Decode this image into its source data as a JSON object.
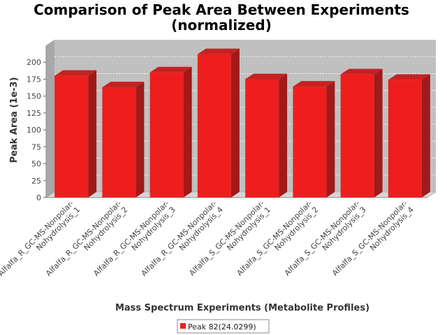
{
  "chart_data": {
    "type": "bar",
    "title": "Comparison of Peak Area Between Experiments",
    "subtitle": "(normalized)",
    "xlabel": "Mass Spectrum Experiments (Metabolite Profiles)",
    "ylabel": "Peak Area (1e-3)",
    "ylim": [
      0,
      225
    ],
    "yticks": [
      "0",
      "25",
      "50",
      "75",
      "100",
      "125",
      "150",
      "175",
      "200"
    ],
    "grid": true,
    "legend_position": "bottom",
    "categories": [
      [
        "Alfalfa_R_GC-MS-Nonpolar-",
        "Nohydrolysis_1"
      ],
      [
        "Alfalfa_R_GC-MS-Nonpolar-",
        "Nohydrolysis_2"
      ],
      [
        "Alfalfa_R_GC-MS-Nonpolar-",
        "Nohydrolysis_3"
      ],
      [
        "Alfalfa_R_GC-MS-Nonpolar-",
        "Nohydrolysis_4"
      ],
      [
        "Alfalfa_S_GC-MS-Nonpolar-",
        "Nohydrolysis_1"
      ],
      [
        "Alfalfa_S_GC-MS-Nonpolar-",
        "Nohydrolysis_2"
      ],
      [
        "Alfalfa_S_GC-MS-Nonpolar-",
        "Nohydrolysis_3"
      ],
      [
        "Alfalfa_S_GC-MS-Nonpolar-",
        "Nohydrolysis_4"
      ]
    ],
    "series": [
      {
        "name": "Peak 82(24.0299)",
        "color": "#ee1e1e",
        "values": [
          180,
          163,
          185,
          212,
          175,
          164,
          182,
          174
        ]
      }
    ]
  }
}
